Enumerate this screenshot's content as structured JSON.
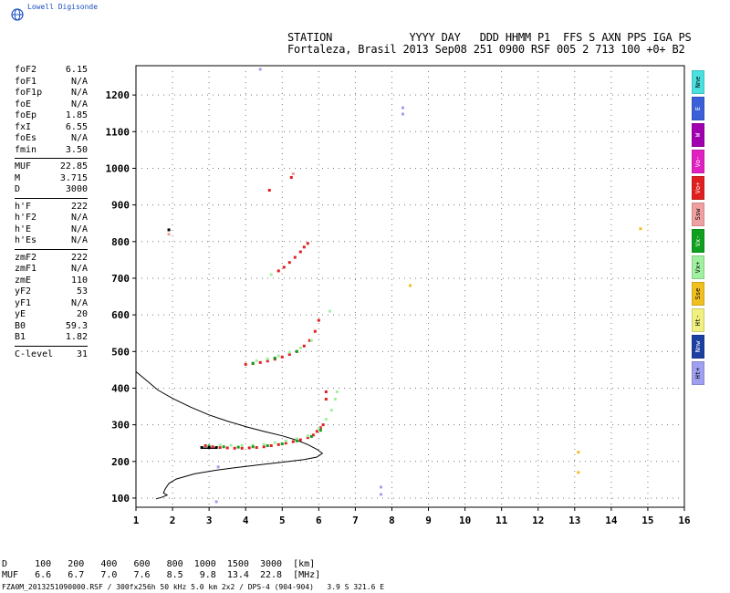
{
  "brand": {
    "name": "Lowell Digisonde",
    "logo": "globe-icon"
  },
  "header": {
    "line1": "STATION            YYYY DAY   DDD HHMM P1  FFS S AXN PPS IGA PS",
    "line2": "Fortaleza, Brasil 2013 Sep08 251 0900 RSF 005 2 713 100 +0+ B2"
  },
  "params": [
    {
      "label": "foF2",
      "value": "6.15"
    },
    {
      "label": "foF1",
      "value": "N/A"
    },
    {
      "label": "foF1p",
      "value": "N/A"
    },
    {
      "label": "foE",
      "value": "N/A"
    },
    {
      "label": "foEp",
      "value": "1.85"
    },
    {
      "label": "fxI",
      "value": "6.55"
    },
    {
      "label": "foEs",
      "value": "N/A"
    },
    {
      "label": "fmin",
      "value": "3.50"
    },
    {
      "sep": true
    },
    {
      "label": "MUF",
      "value": "22.85"
    },
    {
      "label": "M",
      "value": "3.715"
    },
    {
      "label": "D",
      "value": "3000"
    },
    {
      "sep": true
    },
    {
      "label": "h'F",
      "value": "222"
    },
    {
      "label": "h'F2",
      "value": "N/A"
    },
    {
      "label": "h'E",
      "value": "N/A"
    },
    {
      "label": "h'Es",
      "value": "N/A"
    },
    {
      "sep": true
    },
    {
      "label": "zmF2",
      "value": "222"
    },
    {
      "label": "zmF1",
      "value": "N/A"
    },
    {
      "label": "zmE",
      "value": "110"
    },
    {
      "label": "yF2",
      "value": "53"
    },
    {
      "label": "yF1",
      "value": "N/A"
    },
    {
      "label": "yE",
      "value": "20"
    },
    {
      "label": "B0",
      "value": "59.3"
    },
    {
      "label": "B1",
      "value": "1.82"
    },
    {
      "sep": true
    },
    {
      "label": "C-level",
      "value": "31"
    }
  ],
  "legend": [
    {
      "label": "Nne",
      "color": "#4be0e0"
    },
    {
      "label": "E",
      "color": "#3a5fd9"
    },
    {
      "label": "W",
      "color": "#a000b0"
    },
    {
      "label": "Vo-",
      "color": "#e020c0"
    },
    {
      "label": "Vo+",
      "color": "#e02020"
    },
    {
      "label": "Ssw",
      "color": "#f0a0a0"
    },
    {
      "label": "Vx-",
      "color": "#10a020"
    },
    {
      "label": "Vx+",
      "color": "#a0f0a0"
    },
    {
      "label": "Sse",
      "color": "#f0c020"
    },
    {
      "label": "Ht-",
      "color": "#f0f080"
    },
    {
      "label": "Nnw",
      "color": "#1a40a0"
    },
    {
      "label": "Ht+",
      "color": "#a0a0f0"
    }
  ],
  "footer": {
    "muf_line1": "D     100   200   400   600   800  1000  1500  3000  [km]",
    "muf_line2": "MUF   6.6   6.7   7.0   7.6   8.5   9.8  13.4  22.8  [MHz]",
    "file_line": "FZA0M_2013251090000.RSF / 300fx256h 50 kHz 5.0 km 2x2 / DPS-4 (904-904)   3.9 S 321.6 E"
  },
  "chart_data": {
    "type": "scatter",
    "title": "",
    "xlabel": "",
    "ylabel": "",
    "xlim": [
      1,
      16
    ],
    "ylim": [
      75,
      1280
    ],
    "x_ticks": [
      1,
      2,
      3,
      4,
      5,
      6,
      7,
      8,
      9,
      10,
      11,
      12,
      13,
      14,
      15,
      16
    ],
    "y_ticks": [
      100,
      200,
      300,
      400,
      500,
      600,
      700,
      800,
      900,
      1000,
      1100,
      1200
    ],
    "grid": true,
    "series": [
      {
        "color": "#e02020",
        "points": [
          [
            2.9,
            243
          ],
          [
            3.1,
            240
          ],
          [
            3.3,
            238
          ],
          [
            3.5,
            237
          ],
          [
            3.7,
            236
          ],
          [
            3.9,
            236
          ],
          [
            4.1,
            237
          ],
          [
            4.3,
            238
          ],
          [
            4.5,
            240
          ],
          [
            4.7,
            243
          ],
          [
            4.9,
            246
          ],
          [
            5.1,
            250
          ],
          [
            5.3,
            254
          ],
          [
            5.5,
            259
          ],
          [
            5.7,
            265
          ],
          [
            5.85,
            272
          ],
          [
            5.95,
            282
          ],
          [
            6.05,
            292
          ],
          [
            6.12,
            300
          ],
          [
            4.0,
            465
          ],
          [
            4.2,
            467
          ],
          [
            4.4,
            470
          ],
          [
            4.6,
            474
          ],
          [
            4.8,
            479
          ],
          [
            5.0,
            485
          ],
          [
            5.2,
            492
          ],
          [
            5.4,
            500
          ],
          [
            5.6,
            515
          ],
          [
            5.75,
            530
          ],
          [
            5.9,
            555
          ],
          [
            6.0,
            585
          ],
          [
            4.9,
            720
          ],
          [
            5.05,
            730
          ],
          [
            5.2,
            743
          ],
          [
            5.35,
            757
          ],
          [
            5.5,
            772
          ],
          [
            5.6,
            785
          ],
          [
            5.7,
            795
          ],
          [
            4.65,
            940
          ],
          [
            5.25,
            975
          ],
          [
            6.2,
            390
          ],
          [
            6.2,
            370
          ]
        ]
      },
      {
        "color": "#a0f0a0",
        "points": [
          [
            3.3,
            245
          ],
          [
            3.6,
            244
          ],
          [
            3.9,
            244
          ],
          [
            4.2,
            245
          ],
          [
            4.5,
            247
          ],
          [
            4.8,
            251
          ],
          [
            5.1,
            256
          ],
          [
            5.4,
            262
          ],
          [
            5.7,
            270
          ],
          [
            6.0,
            290
          ],
          [
            6.2,
            315
          ],
          [
            6.35,
            340
          ],
          [
            6.45,
            370
          ],
          [
            6.5,
            390
          ],
          [
            4.3,
            475
          ],
          [
            4.6,
            480
          ],
          [
            4.9,
            488
          ],
          [
            5.2,
            498
          ],
          [
            5.5,
            510
          ],
          [
            5.8,
            530
          ],
          [
            4.7,
            710
          ],
          [
            6.3,
            610
          ]
        ]
      },
      {
        "color": "#10a020",
        "points": [
          [
            3.0,
            242
          ],
          [
            3.4,
            240
          ],
          [
            3.8,
            239
          ],
          [
            4.2,
            240
          ],
          [
            4.6,
            243
          ],
          [
            5.0,
            248
          ],
          [
            5.4,
            256
          ],
          [
            5.8,
            268
          ],
          [
            6.05,
            285
          ],
          [
            4.2,
            468
          ],
          [
            4.8,
            482
          ],
          [
            5.4,
            500
          ]
        ]
      },
      {
        "color": "#000000",
        "points": [
          [
            2.8,
            238
          ],
          [
            3.0,
            238
          ],
          [
            3.2,
            238
          ],
          [
            1.9,
            832
          ]
        ]
      },
      {
        "color": "#f0c020",
        "points": [
          [
            14.8,
            835
          ],
          [
            13.1,
            225
          ],
          [
            13.1,
            170
          ],
          [
            8.5,
            680
          ]
        ]
      },
      {
        "color": "#a0a0f0",
        "points": [
          [
            8.3,
            1165
          ],
          [
            8.3,
            1148
          ],
          [
            7.7,
            130
          ],
          [
            7.7,
            110
          ],
          [
            3.2,
            90
          ],
          [
            3.25,
            185
          ],
          [
            4.4,
            1270
          ]
        ]
      },
      {
        "color": "#f0a0a0",
        "points": [
          [
            5.3,
            985
          ],
          [
            1.9,
            820
          ]
        ]
      }
    ],
    "profile_line": [
      [
        1.0,
        445
      ],
      [
        1.3,
        420
      ],
      [
        1.6,
        395
      ],
      [
        2.0,
        372
      ],
      [
        2.5,
        348
      ],
      [
        3.0,
        327
      ],
      [
        3.5,
        310
      ],
      [
        4.0,
        295
      ],
      [
        4.5,
        282
      ],
      [
        5.0,
        270
      ],
      [
        5.4,
        258
      ],
      [
        5.7,
        246
      ],
      [
        5.95,
        233
      ],
      [
        6.1,
        222
      ],
      [
        5.95,
        212
      ],
      [
        5.6,
        205
      ],
      [
        5.0,
        198
      ],
      [
        4.4,
        191
      ],
      [
        3.8,
        184
      ],
      [
        3.2,
        176
      ],
      [
        2.6,
        166
      ],
      [
        2.1,
        152
      ],
      [
        1.9,
        140
      ],
      [
        1.8,
        125
      ],
      [
        1.75,
        114
      ],
      [
        1.85,
        108
      ],
      [
        1.7,
        102
      ],
      [
        1.55,
        98
      ]
    ],
    "trace_line": [
      [
        2.8,
        236
      ],
      [
        3.2,
        236
      ]
    ]
  }
}
